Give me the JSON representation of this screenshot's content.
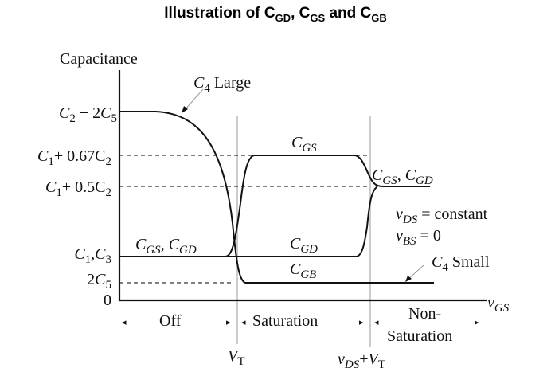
{
  "title": {
    "prefix": "Illustration of ",
    "c1": "C",
    "s1": "GD",
    "sep1": ", ",
    "c2": "C",
    "s2": "GS",
    "sep2": " and ",
    "c3": "C",
    "s3": "GB"
  },
  "axes": {
    "y_label": "Capacitance",
    "x_var": "v",
    "x_sub": "GS"
  },
  "y_ticks": {
    "t1": {
      "a": "C",
      "as": "2",
      "b": " + 2",
      "c": "C",
      "cs": "5"
    },
    "t2": {
      "a": "C",
      "as": "1",
      "b": "+ 0.67C",
      "bs": "2"
    },
    "t3": {
      "a": "C",
      "as": "1",
      "b": "+ 0.5C",
      "bs": "2"
    },
    "t4": {
      "a": "C",
      "as": "1",
      "b": ",",
      "c": "C",
      "cs": "3"
    },
    "t5": {
      "a": "2",
      "c": "C",
      "cs": "5"
    },
    "t6": "0"
  },
  "curve_labels": {
    "c4_large": {
      "c": "C",
      "s": "4",
      "text": " Large"
    },
    "c4_small": {
      "c": "C",
      "s": "4",
      "text": " Small"
    },
    "cgs_cgd_off": {
      "c1": "C",
      "s1": "GS",
      "sep": ", ",
      "c2": "C",
      "s2": "GD"
    },
    "cgs_sat": {
      "c": "C",
      "s": "GS"
    },
    "cgd_sat": {
      "c": "C",
      "s": "GD"
    },
    "cgb_sat": {
      "c": "C",
      "s": "GB"
    },
    "cgs_cgd_nonsat": {
      "c1": "C",
      "s1": "GS",
      "sep": ", ",
      "c2": "C",
      "s2": "GD"
    }
  },
  "conditions": {
    "l1": {
      "v": "v",
      "s": "DS",
      "text": " = constant"
    },
    "l2": {
      "v": "v",
      "s": "BS",
      "text": " = 0"
    }
  },
  "regions": {
    "off": "Off",
    "saturation": "Saturation",
    "nonsat_1": "Non-",
    "nonsat_2": "Saturation"
  },
  "markers": {
    "vt": {
      "v": "V",
      "s": "T"
    },
    "vds_vt": {
      "v": "v",
      "s": "DS",
      "plus": "+",
      "v2": "V",
      "s2": "T"
    }
  }
}
